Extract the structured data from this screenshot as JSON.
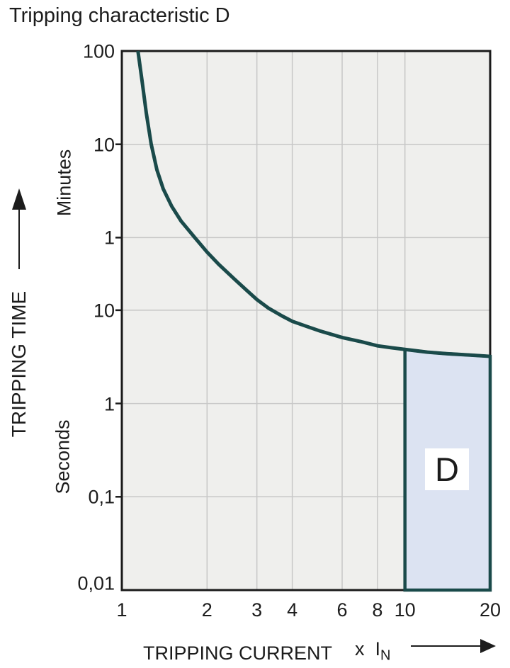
{
  "title": "Tripping characteristic D",
  "y_axis": {
    "label": "TRIPPING TIME",
    "unit_upper": "Minutes",
    "unit_lower": "Seconds",
    "ticks": [
      {
        "label": "100",
        "seconds": 6000
      },
      {
        "label": "10",
        "seconds": 600
      },
      {
        "label": "1",
        "seconds": 60
      },
      {
        "label": "10",
        "seconds": 10
      },
      {
        "label": "1",
        "seconds": 1
      },
      {
        "label": "0,1",
        "seconds": 0.1
      },
      {
        "label": "0,01",
        "seconds": 0.01
      }
    ]
  },
  "x_axis": {
    "label": "TRIPPING CURRENT",
    "unit_prefix": "x",
    "unit_symbol": "I",
    "unit_subscript": "N",
    "ticks": [
      {
        "label": "1",
        "value": 1
      },
      {
        "label": "2",
        "value": 2
      },
      {
        "label": "3",
        "value": 3
      },
      {
        "label": "4",
        "value": 4
      },
      {
        "label": "6",
        "value": 6
      },
      {
        "label": "8",
        "value": 8
      },
      {
        "label": "10",
        "value": 10
      },
      {
        "label": "20",
        "value": 20
      }
    ]
  },
  "chart_data": {
    "type": "line",
    "title": "Tripping characteristic D",
    "xlabel": "TRIPPING CURRENT (x IN)",
    "ylabel": "TRIPPING TIME",
    "x_scale": "log",
    "y_scale": "log",
    "xlim": [
      1,
      20
    ],
    "ylim_seconds": [
      0.01,
      6000
    ],
    "grid": true,
    "series": [
      {
        "name": "thermal-trip-curve",
        "points_x_in": [
          1.14,
          1.18,
          1.22,
          1.27,
          1.33,
          1.4,
          1.5,
          1.62,
          1.81,
          2.0,
          2.2,
          2.5,
          2.75,
          3.0,
          3.3,
          3.7,
          4.0,
          4.5,
          5.0,
          6.0,
          7.0,
          8.0,
          9.0,
          10.0,
          12.0,
          14.0,
          17.0,
          20.0
        ],
        "points_t_seconds": [
          6000,
          2800,
          1300,
          600,
          320,
          200,
          130,
          90,
          60,
          42,
          31,
          21.5,
          16.5,
          13,
          10.5,
          8.6,
          7.6,
          6.7,
          6.0,
          5.1,
          4.6,
          4.15,
          3.95,
          3.8,
          3.55,
          3.42,
          3.3,
          3.2
        ]
      }
    ],
    "region": {
      "label": "D",
      "x_from": 10,
      "x_to": 20,
      "t_bottom_seconds": 0.01,
      "top_follows_curve": true
    },
    "colors": {
      "curve": "#1a4a4a",
      "region_fill": "#dce3f2",
      "region_border": "#1a4a4a",
      "plot_background": "#efefed",
      "gridline": "#c7c7c7",
      "frame": "#1a1a1a",
      "text": "#1c1c1c"
    }
  }
}
